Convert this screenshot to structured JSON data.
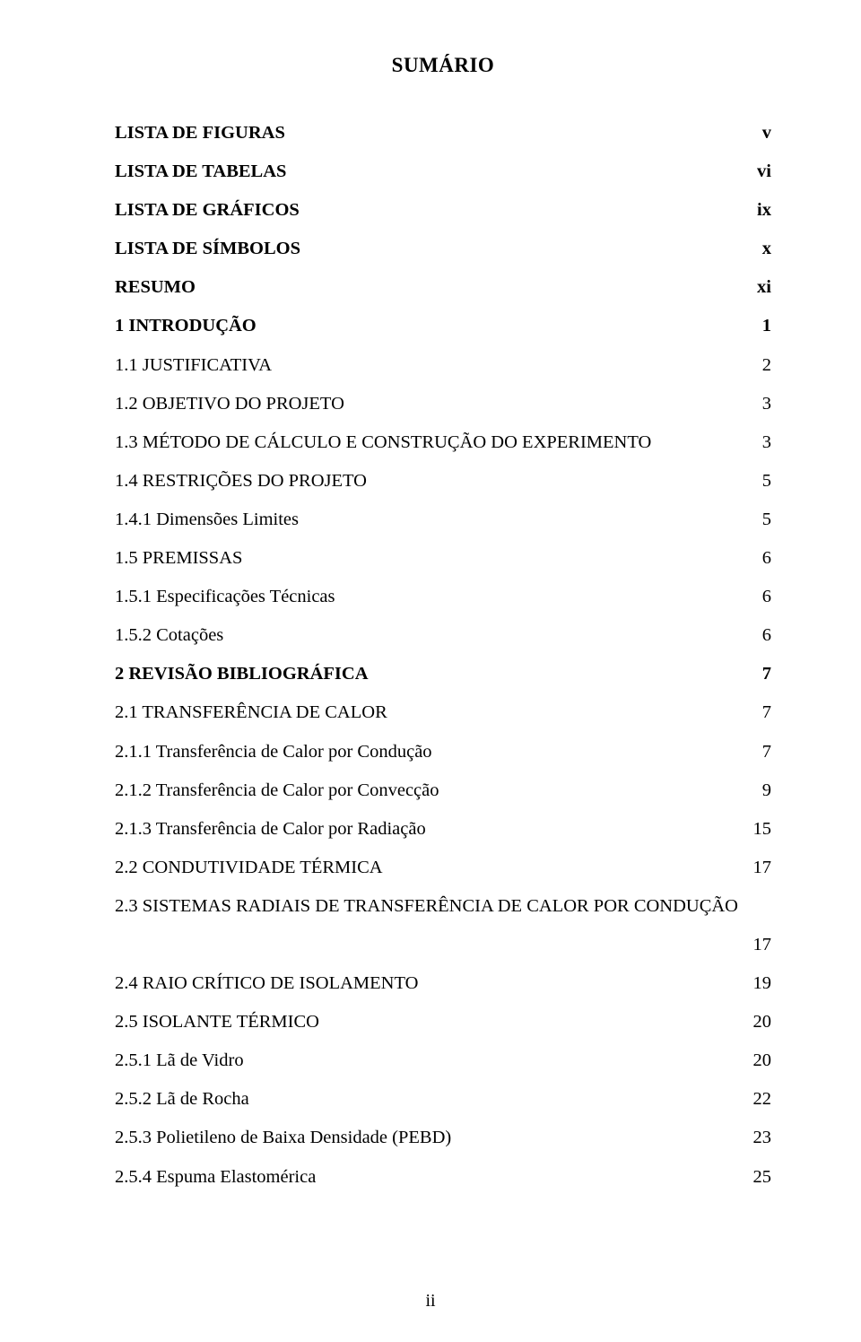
{
  "title": "SUMÁRIO",
  "footer": "ii",
  "fonts": {
    "body_family": "Times New Roman",
    "body_size_pt": 15
  },
  "colors": {
    "text": "#000000",
    "background": "#ffffff"
  },
  "entries": [
    {
      "label": "LISTA DE FIGURAS",
      "page": "v",
      "bold": true
    },
    {
      "label": "LISTA DE TABELAS",
      "page": "vi",
      "bold": true
    },
    {
      "label": "LISTA DE GRÁFICOS",
      "page": "ix",
      "bold": true
    },
    {
      "label": "LISTA DE SÍMBOLOS",
      "page": "x",
      "bold": true,
      "tight": true
    },
    {
      "label": "RESUMO",
      "page": "xi",
      "bold": true
    },
    {
      "label": "1 INTRODUÇÃO",
      "page": "1",
      "bold": true
    },
    {
      "label": "1.1 JUSTIFICATIVA",
      "page": "2",
      "bold": false
    },
    {
      "label": "1.2 OBJETIVO DO PROJETO",
      "page": "3",
      "bold": false
    },
    {
      "label": "1.3 MÉTODO DE CÁLCULO E CONSTRUÇÃO DO EXPERIMENTO",
      "page": "3",
      "bold": false
    },
    {
      "label": "1.4 RESTRIÇÕES DO PROJETO",
      "page": "5",
      "bold": false
    },
    {
      "label": "1.4.1 Dimensões Limites",
      "page": "5",
      "bold": false
    },
    {
      "label": "1.5 PREMISSAS",
      "page": "6",
      "bold": false
    },
    {
      "label": "1.5.1 Especificações Técnicas",
      "page": "6",
      "bold": false
    },
    {
      "label": "1.5.2 Cotações",
      "page": "6",
      "bold": false
    },
    {
      "label": "2 REVISÃO BIBLIOGRÁFICA",
      "page": "7",
      "bold": true
    },
    {
      "label": "2.1 TRANSFERÊNCIA DE CALOR",
      "page": "7",
      "bold": false
    },
    {
      "label": "2.1.1 Transferência de Calor por Condução",
      "page": "7",
      "bold": false
    },
    {
      "label": "2.1.2 Transferência de Calor por Convecção",
      "page": "9",
      "bold": false
    },
    {
      "label": "2.1.3 Transferência de Calor por Radiação",
      "page": "15",
      "bold": false
    },
    {
      "label": "2.2 CONDUTIVIDADE TÉRMICA",
      "page": "17",
      "bold": false
    },
    {
      "label": "2.3 SISTEMAS RADIAIS DE TRANSFERÊNCIA DE CALOR POR CONDUÇÃO",
      "page": "",
      "bold": false,
      "noleader": true
    },
    {
      "label": "",
      "page": "17",
      "bold": false,
      "continuation": true
    },
    {
      "label": "2.4 RAIO CRÍTICO DE ISOLAMENTO",
      "page": "19",
      "bold": false
    },
    {
      "label": "2.5 ISOLANTE TÉRMICO",
      "page": "20",
      "bold": false
    },
    {
      "label": "2.5.1 Lã de Vidro",
      "page": "20",
      "bold": false
    },
    {
      "label": "2.5.2 Lã de Rocha",
      "page": "22",
      "bold": false
    },
    {
      "label": "2.5.3 Polietileno de Baixa Densidade (PEBD)",
      "page": "23",
      "bold": false
    },
    {
      "label": "2.5.4 Espuma Elastomérica",
      "page": "25",
      "bold": false
    }
  ]
}
